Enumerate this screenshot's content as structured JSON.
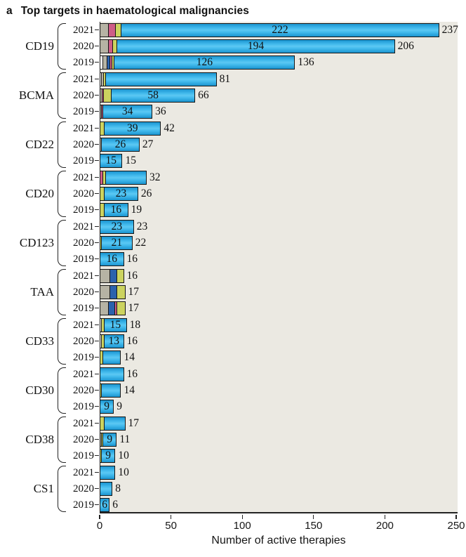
{
  "panel": {
    "label": "a",
    "title": "Top targets in haematological malignancies"
  },
  "chart_data": {
    "type": "bar",
    "orientation": "horizontal",
    "stacked": true,
    "title": "Top targets in haematological malignancies",
    "xlabel": "Number of active therapies",
    "xlim": [
      0,
      250
    ],
    "xticks": [
      0,
      50,
      100,
      150,
      200,
      250
    ],
    "grid": false,
    "legend": "none",
    "plot_background": "#ebe9e2",
    "bar_border": "#161616",
    "colors": {
      "cyan": "#29abe2",
      "gray": "#b6b3a4",
      "pink": "#cf5d87",
      "yellow": "#ccd35f",
      "royal": "#2b62ad",
      "white": "#ffffff"
    },
    "groups": [
      {
        "target": "CD19",
        "rows": [
          {
            "year": "2021",
            "segments": [
              [
                "gray",
                6
              ],
              [
                "pink",
                5
              ],
              [
                "yellow",
                4
              ],
              [
                "cyan",
                222
              ]
            ],
            "inner_label": "222",
            "total_label": "237"
          },
          {
            "year": "2020",
            "segments": [
              [
                "gray",
                6
              ],
              [
                "pink",
                3
              ],
              [
                "yellow",
                3
              ],
              [
                "cyan",
                194
              ]
            ],
            "inner_label": "194",
            "total_label": "206"
          },
          {
            "year": "2019",
            "segments": [
              [
                "white",
                2
              ],
              [
                "gray",
                3
              ],
              [
                "royal",
                2
              ],
              [
                "pink",
                1.5
              ],
              [
                "yellow",
                1.5
              ],
              [
                "cyan",
                126
              ]
            ],
            "inner_label": "126",
            "total_label": "136"
          }
        ]
      },
      {
        "target": "BCMA",
        "rows": [
          {
            "year": "2021",
            "segments": [
              [
                "white",
                1
              ],
              [
                "gray",
                1.5
              ],
              [
                "yellow",
                1.5
              ],
              [
                "cyan",
                77
              ]
            ],
            "inner_label": null,
            "total_label": "81"
          },
          {
            "year": "2020",
            "segments": [
              [
                "gray",
                1.5
              ],
              [
                "pink",
                1
              ],
              [
                "yellow",
                5.5
              ],
              [
                "cyan",
                58
              ]
            ],
            "inner_label": "58",
            "total_label": "66"
          },
          {
            "year": "2019",
            "segments": [
              [
                "gray",
                1
              ],
              [
                "pink",
                1
              ],
              [
                "cyan",
                34
              ]
            ],
            "inner_label": "34",
            "total_label": "36"
          }
        ]
      },
      {
        "target": "CD22",
        "rows": [
          {
            "year": "2021",
            "segments": [
              [
                "yellow",
                3
              ],
              [
                "cyan",
                39
              ]
            ],
            "inner_label": "39",
            "total_label": "42"
          },
          {
            "year": "2020",
            "segments": [
              [
                "gray",
                1
              ],
              [
                "cyan",
                26
              ]
            ],
            "inner_label": "26",
            "total_label": "27"
          },
          {
            "year": "2019",
            "segments": [
              [
                "cyan",
                15
              ]
            ],
            "inner_label": "15",
            "total_label": "15"
          }
        ]
      },
      {
        "target": "CD20",
        "rows": [
          {
            "year": "2021",
            "segments": [
              [
                "pink",
                2
              ],
              [
                "yellow",
                2
              ],
              [
                "cyan",
                28
              ]
            ],
            "inner_label": null,
            "total_label": "32"
          },
          {
            "year": "2020",
            "segments": [
              [
                "yellow",
                3
              ],
              [
                "cyan",
                23
              ]
            ],
            "inner_label": "23",
            "total_label": "26"
          },
          {
            "year": "2019",
            "segments": [
              [
                "yellow",
                3
              ],
              [
                "cyan",
                16
              ]
            ],
            "inner_label": "16",
            "total_label": "19"
          }
        ]
      },
      {
        "target": "CD123",
        "rows": [
          {
            "year": "2021",
            "segments": [
              [
                "cyan",
                23
              ]
            ],
            "inner_label": "23",
            "total_label": "23"
          },
          {
            "year": "2020",
            "segments": [
              [
                "yellow",
                1
              ],
              [
                "cyan",
                21
              ]
            ],
            "inner_label": "21",
            "total_label": "22"
          },
          {
            "year": "2019",
            "segments": [
              [
                "cyan",
                16
              ]
            ],
            "inner_label": "16",
            "total_label": "16"
          }
        ]
      },
      {
        "target": "TAA",
        "rows": [
          {
            "year": "2021",
            "segments": [
              [
                "gray",
                7
              ],
              [
                "royal",
                5
              ],
              [
                "yellow",
                4
              ]
            ],
            "inner_label": null,
            "total_label": "16"
          },
          {
            "year": "2020",
            "segments": [
              [
                "gray",
                7
              ],
              [
                "royal",
                5
              ],
              [
                "yellow",
                5
              ]
            ],
            "inner_label": null,
            "total_label": "17"
          },
          {
            "year": "2019",
            "segments": [
              [
                "gray",
                6
              ],
              [
                "royal",
                4.5
              ],
              [
                "pink",
                1.5
              ],
              [
                "yellow",
                5
              ]
            ],
            "inner_label": null,
            "total_label": "17"
          }
        ]
      },
      {
        "target": "CD33",
        "rows": [
          {
            "year": "2021",
            "segments": [
              [
                "white",
                1
              ],
              [
                "yellow",
                2
              ],
              [
                "cyan",
                15
              ]
            ],
            "inner_label": "15",
            "total_label": "18"
          },
          {
            "year": "2020",
            "segments": [
              [
                "white",
                1
              ],
              [
                "yellow",
                2
              ],
              [
                "cyan",
                13
              ]
            ],
            "inner_label": "13",
            "total_label": "16"
          },
          {
            "year": "2019",
            "segments": [
              [
                "yellow",
                2
              ],
              [
                "cyan",
                12
              ]
            ],
            "inner_label": null,
            "total_label": "14"
          }
        ]
      },
      {
        "target": "CD30",
        "rows": [
          {
            "year": "2021",
            "segments": [
              [
                "cyan",
                16
              ]
            ],
            "inner_label": null,
            "total_label": "16"
          },
          {
            "year": "2020",
            "segments": [
              [
                "yellow",
                1
              ],
              [
                "cyan",
                13
              ]
            ],
            "inner_label": null,
            "total_label": "14"
          },
          {
            "year": "2019",
            "segments": [
              [
                "cyan",
                9
              ]
            ],
            "inner_label": "9",
            "total_label": "9"
          }
        ]
      },
      {
        "target": "CD38",
        "rows": [
          {
            "year": "2021",
            "segments": [
              [
                "yellow",
                3
              ],
              [
                "cyan",
                14
              ]
            ],
            "inner_label": null,
            "total_label": "17"
          },
          {
            "year": "2020",
            "segments": [
              [
                "gray",
                1
              ],
              [
                "yellow",
                1
              ],
              [
                "cyan",
                9
              ]
            ],
            "inner_label": "9",
            "total_label": "11"
          },
          {
            "year": "2019",
            "segments": [
              [
                "yellow",
                1
              ],
              [
                "cyan",
                9
              ]
            ],
            "inner_label": "9",
            "total_label": "10"
          }
        ]
      },
      {
        "target": "CS1",
        "rows": [
          {
            "year": "2021",
            "segments": [
              [
                "cyan",
                10
              ]
            ],
            "inner_label": null,
            "total_label": "10"
          },
          {
            "year": "2020",
            "segments": [
              [
                "cyan",
                8
              ]
            ],
            "inner_label": null,
            "total_label": "8"
          },
          {
            "year": "2019",
            "segments": [
              [
                "cyan",
                6
              ]
            ],
            "inner_label": "6",
            "total_label": "6"
          }
        ]
      }
    ]
  }
}
